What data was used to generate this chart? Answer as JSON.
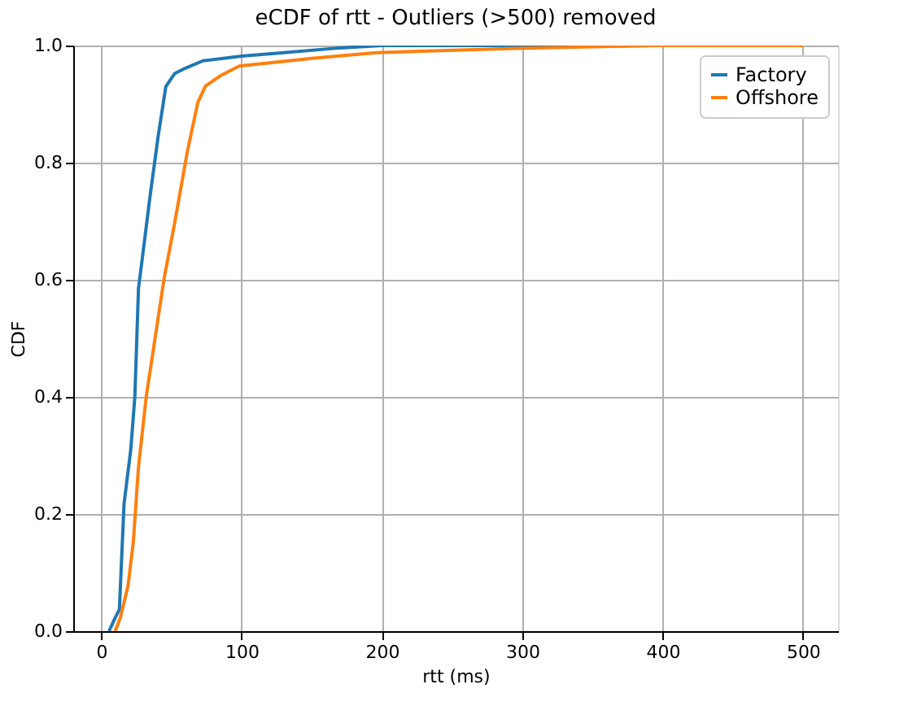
{
  "chart_data": {
    "type": "line",
    "title": "eCDF of rtt - Outliers (>500) removed",
    "xlabel": "rtt (ms)",
    "ylabel": "CDF",
    "xlim": [
      -20,
      525
    ],
    "xticks": [
      0,
      100,
      200,
      300,
      400,
      500
    ],
    "ylim": [
      0,
      1
    ],
    "yticks": [
      {
        "value": 0,
        "label": "0.0"
      },
      0.2,
      0.4,
      0.6,
      0.8,
      {
        "value": 1,
        "label": "1.0"
      }
    ],
    "grid": true,
    "legend": "top right",
    "marker": "none",
    "line_style": "solid",
    "series": [
      {
        "name": "Factory",
        "color": "#1f77b4",
        "x": [
          5.5,
          9.9,
          12.9,
          16.2,
          21,
          23.9,
          26.5,
          29.4,
          34.6,
          40.4,
          46,
          52.2,
          59.6,
          72.4,
          100,
          130,
          170,
          200,
          500
        ],
        "values": [
          0,
          0.023,
          0.037,
          0.217,
          0.31,
          0.4,
          0.585,
          0.64,
          0.74,
          0.843,
          0.93,
          0.952,
          0.961,
          0.974,
          0.982,
          0.988,
          0.996,
          1.0,
          1.0
        ]
      },
      {
        "name": "Offshore",
        "color": "#ff7f0e",
        "x": [
          9.9,
          13.6,
          19.1,
          22.8,
          26.5,
          32,
          39.3,
          44.9,
          52.2,
          61.4,
          68.8,
          74.3,
          85.3,
          98.2,
          150,
          196,
          295,
          395,
          500
        ],
        "values": [
          0,
          0.023,
          0.078,
          0.152,
          0.28,
          0.4,
          0.516,
          0.604,
          0.696,
          0.82,
          0.903,
          0.931,
          0.949,
          0.965,
          0.978,
          0.988,
          0.995,
          1.0,
          1.0
        ]
      }
    ]
  }
}
